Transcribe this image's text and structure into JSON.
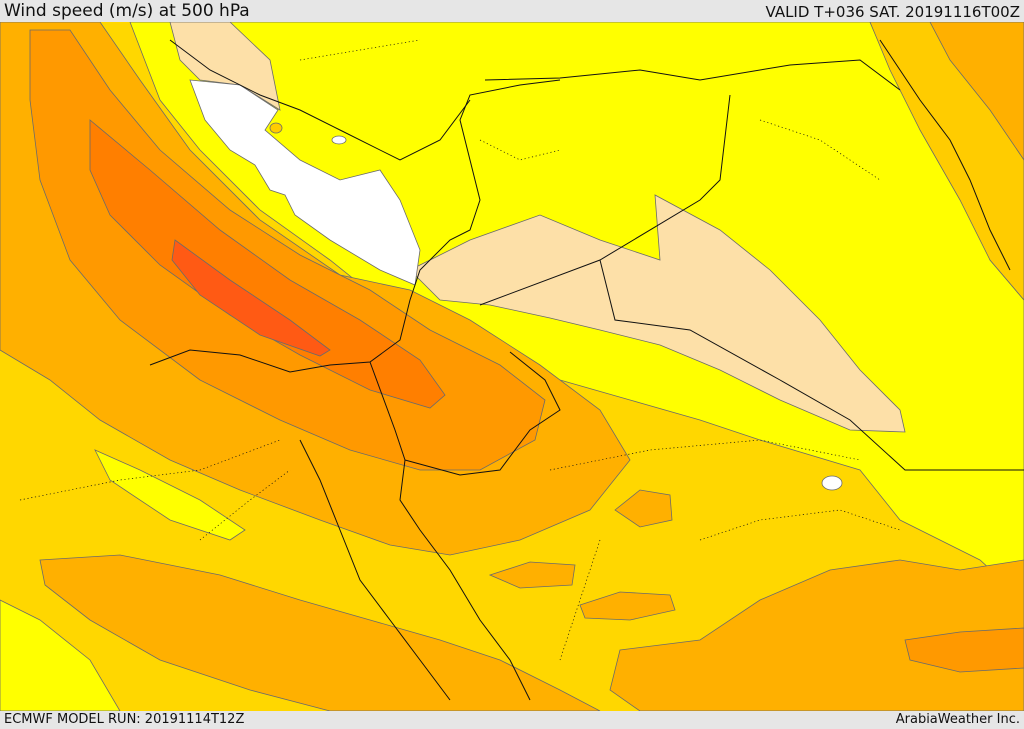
{
  "header": {
    "title": "Wind speed (m/s) at 500 hPa",
    "valid_time": "VALID T+036 SAT. 20191116T00Z"
  },
  "footer": {
    "model_run": "ECMWF MODEL RUN: 20191114T12Z",
    "credit": "ArabiaWeather Inc."
  },
  "map": {
    "field": "wind-speed-500hpa",
    "colors": {
      "background": "#ffd700",
      "calm": "#ffffff",
      "light": "#fde0a8",
      "low": "#ffff00",
      "moderate": "#ffcc00",
      "elevated": "#ffb000",
      "high": "#ff9900",
      "very_high": "#ff7f00",
      "jet_core": "#ff5a14"
    }
  }
}
